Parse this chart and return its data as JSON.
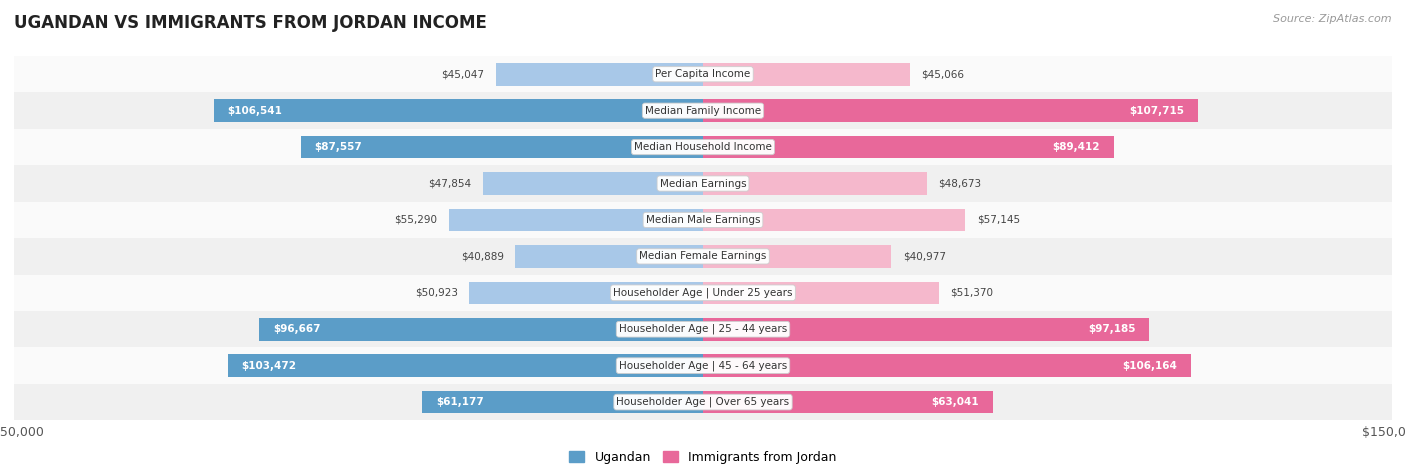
{
  "title": "UGANDAN VS IMMIGRANTS FROM JORDAN INCOME",
  "source": "Source: ZipAtlas.com",
  "categories": [
    "Per Capita Income",
    "Median Family Income",
    "Median Household Income",
    "Median Earnings",
    "Median Male Earnings",
    "Median Female Earnings",
    "Householder Age | Under 25 years",
    "Householder Age | 25 - 44 years",
    "Householder Age | 45 - 64 years",
    "Householder Age | Over 65 years"
  ],
  "ugandan": [
    45047,
    106541,
    87557,
    47854,
    55290,
    40889,
    50923,
    96667,
    103472,
    61177
  ],
  "jordan": [
    45066,
    107715,
    89412,
    48673,
    57145,
    40977,
    51370,
    97185,
    106164,
    63041
  ],
  "ugandan_labels": [
    "$45,047",
    "$106,541",
    "$87,557",
    "$47,854",
    "$55,290",
    "$40,889",
    "$50,923",
    "$96,667",
    "$103,472",
    "$61,177"
  ],
  "jordan_labels": [
    "$45,066",
    "$107,715",
    "$89,412",
    "$48,673",
    "$57,145",
    "$40,977",
    "$51,370",
    "$97,185",
    "$106,164",
    "$63,041"
  ],
  "max_val": 150000,
  "color_ugandan_light": "#A8C8E8",
  "color_ugandan_dark": "#5B9DC8",
  "color_jordan_light": "#F5B8CC",
  "color_jordan_dark": "#E8689A",
  "color_bg_row_odd": "#F0F0F0",
  "color_bg_row_even": "#FAFAFA",
  "bar_height": 0.62,
  "inside_threshold": 60000,
  "legend_ugandan": "Ugandan",
  "legend_jordan": "Immigrants from Jordan"
}
